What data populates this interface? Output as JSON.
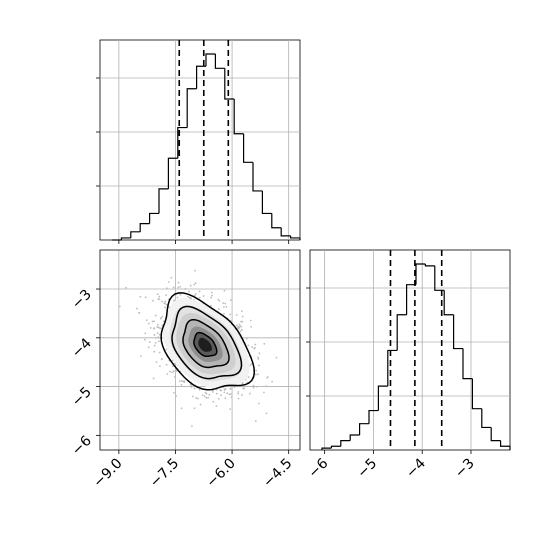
{
  "chart_data": {
    "type": "corner",
    "grid": true,
    "colors": {
      "line": "#000000",
      "grid": "#b0b0b0",
      "scatter": "#bdbdbd"
    },
    "params": [
      {
        "range": [
          -9.5,
          -4.2
        ],
        "ticks": [
          -9.0,
          -7.5,
          -6.0,
          -4.5
        ],
        "tick_labels": [
          "−9.0",
          "−7.5",
          "−6.0",
          "−4.5"
        ]
      },
      {
        "range": [
          -6.3,
          -2.2
        ],
        "ticks": [
          -6,
          -5,
          -4,
          -3
        ],
        "tick_labels": [
          "−6",
          "−5",
          "−4",
          "−3"
        ]
      }
    ],
    "hist1": {
      "counts": [
        0,
        0.01,
        0.04,
        0.08,
        0.13,
        0.25,
        0.4,
        0.55,
        0.74,
        0.85,
        0.91,
        0.84,
        0.69,
        0.52,
        0.38,
        0.24,
        0.13,
        0.06,
        0.02,
        0.01
      ],
      "quantiles": [
        -7.4,
        -6.75,
        -6.1
      ]
    },
    "hist2": {
      "counts": [
        0.01,
        0.02,
        0.05,
        0.08,
        0.14,
        0.21,
        0.34,
        0.53,
        0.72,
        0.88,
        0.99,
        0.98,
        0.85,
        0.72,
        0.54,
        0.38,
        0.22,
        0.12,
        0.05,
        0.02
      ],
      "quantiles": [
        -4.65,
        -4.15,
        -3.6
      ]
    },
    "scatter2d": {
      "mean": [
        -6.72,
        -4.15
      ],
      "sigma": [
        0.6,
        0.48
      ],
      "rho": -0.4,
      "contour_sigma_levels": [
        0.5,
        1.0,
        1.5,
        2.0
      ]
    }
  }
}
